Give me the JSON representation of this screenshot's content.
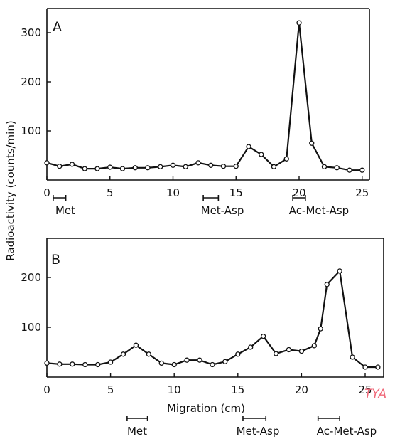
{
  "chart_data": [
    {
      "type": "line",
      "panel_label": "A",
      "x": [
        0,
        1,
        2,
        3,
        4,
        5,
        6,
        7,
        8,
        9,
        10,
        11,
        12,
        13,
        14,
        15,
        16,
        17,
        18,
        19,
        20,
        21,
        22,
        23,
        24,
        25
      ],
      "values": [
        35,
        28,
        32,
        23,
        23,
        26,
        23,
        25,
        25,
        27,
        30,
        27,
        35,
        30,
        28,
        28,
        68,
        52,
        27,
        43,
        320,
        75,
        27,
        25,
        20,
        20
      ],
      "xlim": [
        0,
        25
      ],
      "ylim": [
        0,
        330
      ],
      "x_ticks": [
        0,
        5,
        10,
        15,
        20,
        25
      ],
      "x_tick_labels": [
        "0",
        "5",
        "10",
        "15",
        "20",
        "25"
      ],
      "y_ticks": [
        100,
        200,
        300
      ],
      "y_tick_labels": [
        "100",
        "200",
        "300"
      ],
      "standards": [
        {
          "label": "Met",
          "x": [
            0.5,
            1.5
          ]
        },
        {
          "label": "Met-Asp",
          "x": [
            12.4,
            13.6
          ]
        },
        {
          "label": "Ac-Met-Asp",
          "x": [
            19.5,
            20.5
          ]
        }
      ]
    },
    {
      "type": "line",
      "panel_label": "B",
      "x": [
        0,
        1,
        2,
        3,
        4,
        5,
        6,
        7,
        8,
        9,
        10,
        11,
        12,
        13,
        14,
        15,
        16,
        17,
        18,
        19,
        20,
        21,
        21.5,
        22,
        23,
        24,
        25,
        26
      ],
      "values": [
        28,
        26,
        26,
        25,
        25,
        30,
        46,
        64,
        46,
        28,
        25,
        34,
        34,
        25,
        31,
        46,
        60,
        82,
        47,
        55,
        52,
        63,
        97,
        186,
        213,
        40,
        20,
        20
      ],
      "xlim": [
        0,
        26
      ],
      "ylim": [
        0,
        240
      ],
      "x_ticks": [
        0,
        5,
        10,
        15,
        20,
        25
      ],
      "x_tick_labels": [
        "0",
        "5",
        "10",
        "15",
        "20",
        "25"
      ],
      "y_ticks": [
        100,
        200
      ],
      "y_tick_labels": [
        "100",
        "200"
      ],
      "xlabel": "Migration (cm)",
      "standards": [
        {
          "label": "Met",
          "x": [
            6.3,
            7.9
          ]
        },
        {
          "label": "Met-Asp",
          "x": [
            15.4,
            17.2
          ]
        },
        {
          "label": "Ac-Met-Asp",
          "x": [
            21.3,
            23.0
          ]
        }
      ]
    }
  ],
  "ylabel": "Radioactivity (counts/min)",
  "margin_mark": "TYA"
}
